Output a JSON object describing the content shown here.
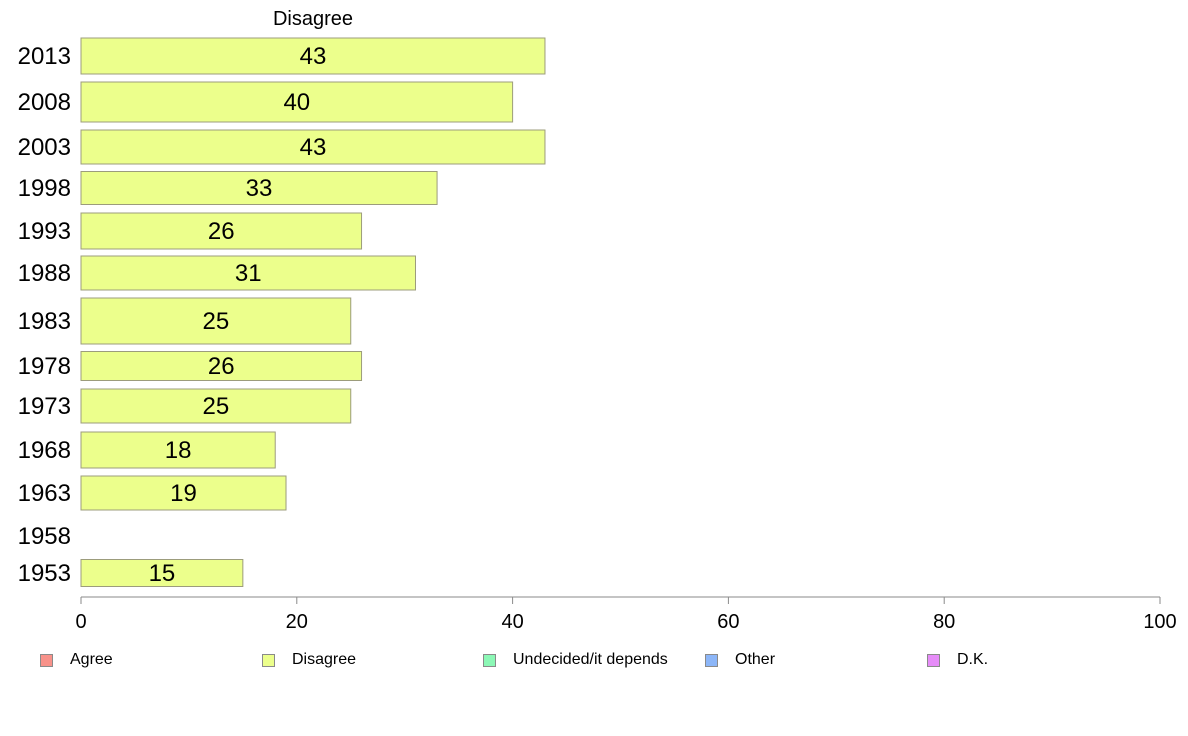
{
  "chart_data": {
    "type": "bar",
    "orientation": "horizontal",
    "title": "Disagree",
    "categories": [
      "2013",
      "2008",
      "2003",
      "1998",
      "1993",
      "1988",
      "1983",
      "1978",
      "1973",
      "1968",
      "1963",
      "1958",
      "1953"
    ],
    "series": [
      {
        "name": "Disagree",
        "color": "#ecff8c",
        "values": [
          43,
          40,
          43,
          33,
          26,
          31,
          25,
          26,
          25,
          18,
          19,
          null,
          15
        ]
      }
    ],
    "xlim": [
      0,
      100
    ],
    "xticks": [
      0,
      20,
      40,
      60,
      80,
      100
    ],
    "grid": false,
    "legend": {
      "position": "bottom",
      "items": [
        {
          "label": "Agree",
          "color": "#f8928a"
        },
        {
          "label": "Disagree",
          "color": "#ecff8c"
        },
        {
          "label": "Undecided/it depends",
          "color": "#8cf8b6"
        },
        {
          "label": "Other",
          "color": "#8cb6f8"
        },
        {
          "label": "D.K.",
          "color": "#e68cf8"
        }
      ]
    }
  }
}
